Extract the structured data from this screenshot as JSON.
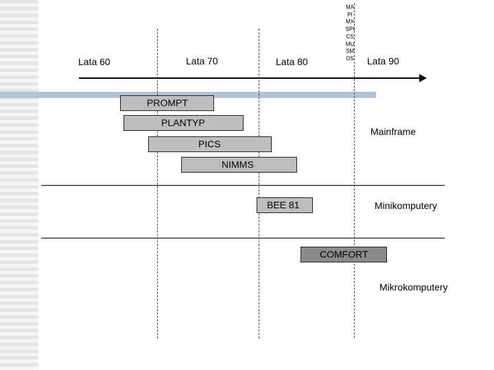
{
  "eras": [
    "Lata 60",
    "Lata 70",
    "Lata 80",
    "Lata 90"
  ],
  "vertical_labels": {
    "first": "MAPIMXSPICS",
    "second": "MUSMOS"
  },
  "systems": [
    {
      "name": "PROMPT"
    },
    {
      "name": "PLANTYP"
    },
    {
      "name": "PICS"
    },
    {
      "name": "NIMMS"
    },
    {
      "name": "BEE 81"
    },
    {
      "name": "COMFORT"
    }
  ],
  "categories": [
    "Mainframe",
    "Minikomputery",
    "Mikrokomputery"
  ],
  "colors": {
    "bar_fill": "#bdbdbd",
    "bar_dark": "#8a8a8a",
    "accent_band": "#b3c1d7",
    "line": "#000000"
  }
}
